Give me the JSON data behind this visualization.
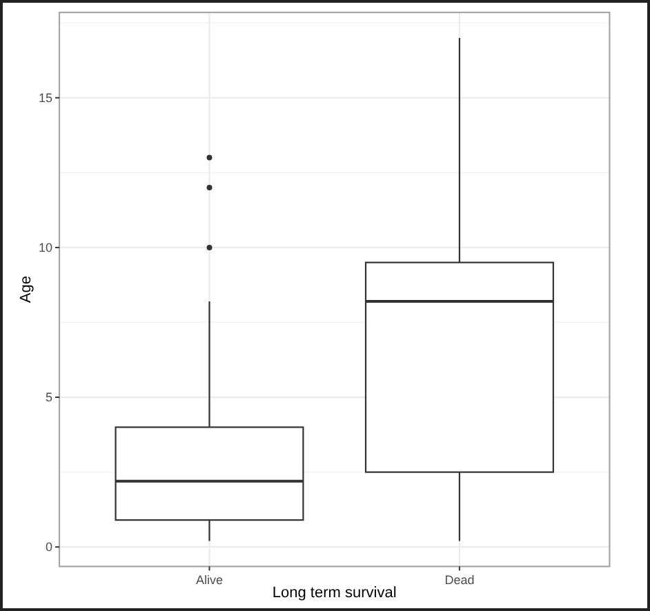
{
  "chart_data": {
    "type": "box",
    "xlabel": "Long term survival",
    "ylabel": "Age",
    "categories": [
      "Alive",
      "Dead"
    ],
    "boxes": [
      {
        "low": 0.2,
        "q1": 0.9,
        "median": 2.2,
        "q3": 4,
        "high": 8.2,
        "outliers": [
          10,
          12,
          13
        ]
      },
      {
        "low": 0.2,
        "q1": 2.5,
        "median": 8.2,
        "q3": 9.5,
        "high": 17
      }
    ],
    "ylim": [
      -0.65,
      17.85
    ],
    "yticks": [
      0,
      5,
      10,
      15
    ],
    "grid": true
  }
}
